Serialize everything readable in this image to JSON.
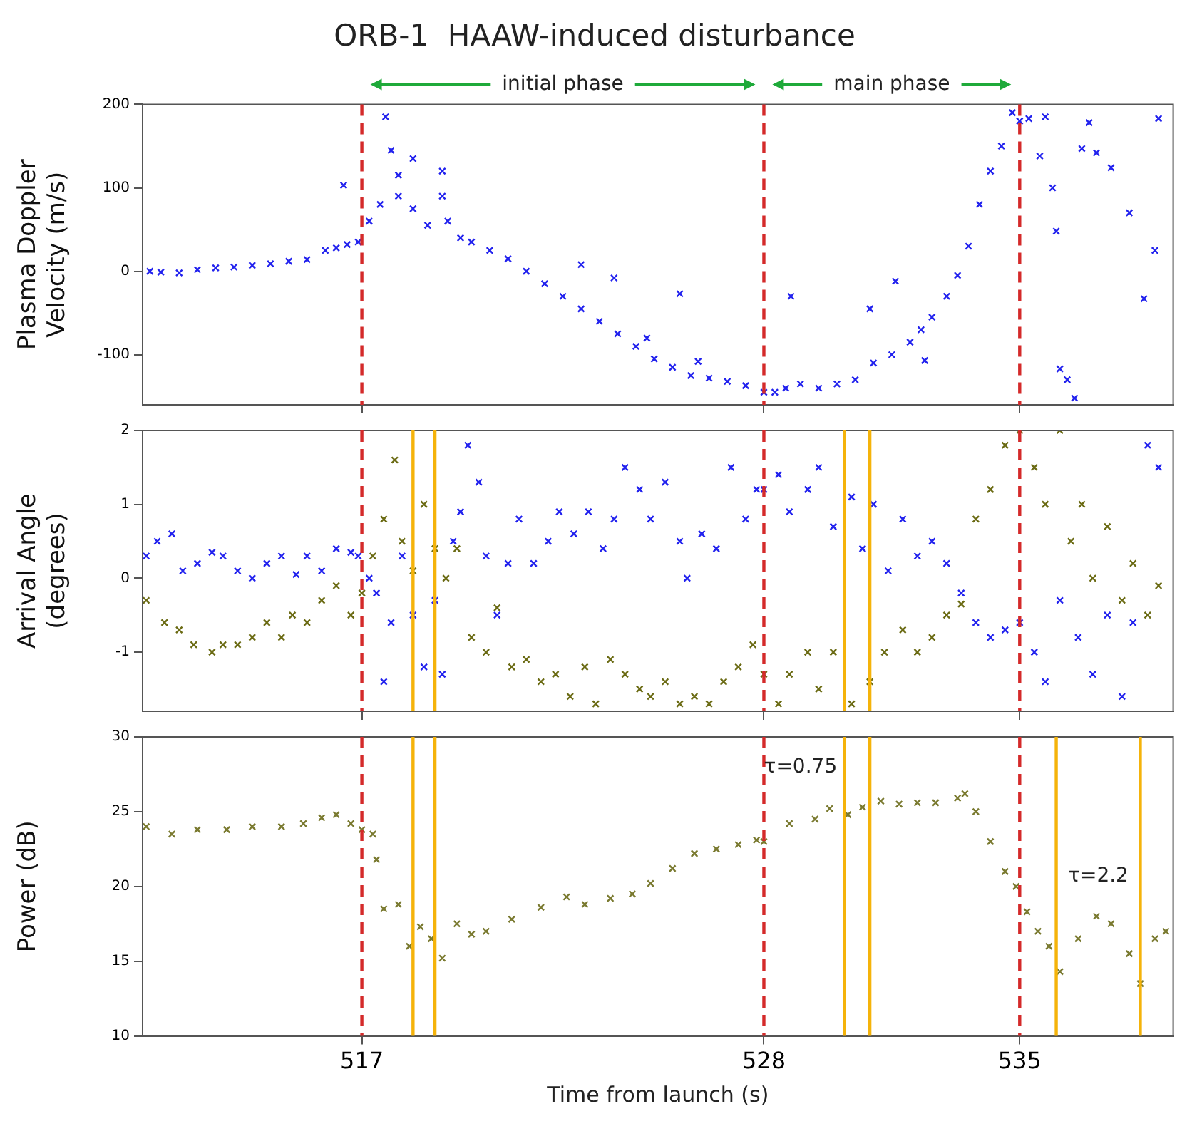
{
  "chart_data": [
    {
      "type": "scatter",
      "title": "ORB-1  HAAW-induced disturbance",
      "ylabel": "Plasma Doppler Velocity (m/s)",
      "xlim": [
        511,
        539.2
      ],
      "xticks": [
        {
          "value": 517,
          "label": null
        },
        {
          "value": 528,
          "label": null
        },
        {
          "value": 535,
          "label": null
        }
      ],
      "ylim": [
        -160,
        200
      ],
      "yticks": [
        -100,
        0,
        100,
        200
      ],
      "tick_labels": "y",
      "marker": "cross",
      "annotations": [
        "initial phase",
        "main phase"
      ],
      "ref_lines": [
        {
          "axis": "x",
          "value": 517,
          "color": "#d42a2a",
          "line_style": "dashed"
        },
        {
          "axis": "x",
          "value": 528,
          "color": "#d42a2a",
          "line_style": "dashed"
        },
        {
          "axis": "x",
          "value": 535,
          "color": "#d42a2a",
          "line_style": "dashed"
        }
      ],
      "series": [
        {
          "color": "#2222ee",
          "x": [
            511.2,
            511.5,
            512,
            512.5,
            513,
            513.5,
            514,
            514.5,
            515,
            515.5,
            516,
            516.3,
            516.5,
            516.6,
            516.9,
            517.2,
            517.5,
            517.65,
            517.8,
            518.0,
            518.0,
            518.4,
            518.4,
            518.8,
            519.2,
            519.2,
            519.35,
            519.7,
            520,
            520.5,
            521,
            521.5,
            522,
            522.5,
            523,
            523.0,
            523.5,
            523.9,
            524,
            524.5,
            524.8,
            525,
            525.5,
            525.7,
            526,
            526.2,
            526.5,
            527,
            527.5,
            528,
            528.3,
            528.6,
            528.74,
            529,
            529.5,
            530,
            530.5,
            530.9,
            531,
            531.5,
            531.6,
            532,
            532.3,
            532.4,
            532.6,
            533,
            533.3,
            533.6,
            533.9,
            534.2,
            534.5,
            534.8,
            535,
            535.25,
            535.55,
            535.7,
            535.9,
            536.0,
            536.1,
            536.3,
            536.5,
            536.7,
            536.9,
            537.1,
            537.5,
            538.0,
            538.4,
            538.7,
            538.8
          ],
          "values": [
            0,
            -1,
            -2,
            2,
            4,
            5,
            7,
            9,
            12,
            14,
            25,
            28,
            103,
            32,
            35,
            60,
            80,
            185,
            145,
            115,
            90,
            135,
            75,
            55,
            120,
            90,
            60,
            40,
            35,
            25,
            15,
            0,
            -15,
            -30,
            8,
            -45,
            -60,
            -8,
            -75,
            -90,
            -80,
            -105,
            -115,
            -27,
            -125,
            -108,
            -128,
            -132,
            -137,
            -145,
            -145,
            -140,
            -30,
            -135,
            -140,
            -135,
            -130,
            -45,
            -110,
            -100,
            -12,
            -85,
            -70,
            -107,
            -55,
            -30,
            -5,
            30,
            80,
            120,
            150,
            190,
            180,
            183,
            138,
            185,
            100,
            48,
            -117,
            -130,
            -152,
            147,
            178,
            142,
            124,
            70,
            -33,
            25,
            183
          ]
        }
      ]
    },
    {
      "type": "scatter",
      "ylabel": "Arrival Angle (degrees)",
      "xlim": [
        511,
        539.2
      ],
      "xticks": [
        {
          "value": 517,
          "label": null
        },
        {
          "value": 528,
          "label": null
        },
        {
          "value": 535,
          "label": null
        }
      ],
      "ylim": [
        -1.8,
        2
      ],
      "yticks": [
        -1,
        0,
        1,
        2
      ],
      "tick_labels": "y",
      "marker": "cross",
      "ref_lines": [
        {
          "axis": "x",
          "value": 517,
          "color": "#d42a2a",
          "line_style": "dashed"
        },
        {
          "axis": "x",
          "value": 528,
          "color": "#d42a2a",
          "line_style": "dashed"
        },
        {
          "axis": "x",
          "value": 535,
          "color": "#d42a2a",
          "line_style": "dashed"
        },
        {
          "axis": "x",
          "value": 518.4,
          "color": "#f5b30a",
          "line_style": "solid"
        },
        {
          "axis": "x",
          "value": 519.0,
          "color": "#f5b30a",
          "line_style": "solid"
        },
        {
          "axis": "x",
          "value": 530.2,
          "color": "#f5b30a",
          "line_style": "solid"
        },
        {
          "axis": "x",
          "value": 530.9,
          "color": "#f5b30a",
          "line_style": "solid"
        }
      ],
      "series": [
        {
          "color": "#2222ee",
          "x": [
            511.1,
            511.4,
            511.8,
            512.1,
            512.5,
            512.9,
            513.2,
            513.6,
            514.0,
            514.4,
            514.8,
            515.2,
            515.5,
            515.9,
            516.3,
            516.7,
            516.9,
            517.2,
            517.4,
            517.6,
            517.8,
            518.1,
            518.4,
            518.7,
            519.0,
            519.2,
            519.5,
            519.7,
            519.9,
            520.2,
            520.4,
            520.7,
            521.0,
            521.3,
            521.7,
            522.1,
            522.4,
            522.8,
            523.2,
            523.6,
            523.9,
            524.2,
            524.6,
            524.9,
            525.3,
            525.7,
            525.9,
            526.3,
            526.7,
            527.1,
            527.5,
            527.8,
            528.0,
            528.4,
            528.7,
            529.2,
            529.5,
            529.9,
            530.4,
            530.7,
            531.0,
            531.4,
            531.8,
            532.2,
            532.6,
            533.0,
            533.4,
            533.8,
            534.2,
            534.6,
            535.0,
            535.4,
            535.7,
            536.1,
            536.6,
            537.0,
            537.4,
            537.8,
            538.1,
            538.5,
            538.8
          ],
          "values": [
            0.3,
            0.5,
            0.6,
            0.1,
            0.2,
            0.35,
            0.3,
            0.1,
            0.0,
            0.2,
            0.3,
            0.05,
            0.3,
            0.1,
            0.4,
            0.35,
            0.3,
            0.0,
            -0.2,
            -1.4,
            -0.6,
            0.3,
            -0.5,
            -1.2,
            -0.3,
            -1.3,
            0.5,
            0.9,
            1.8,
            1.3,
            0.3,
            -0.5,
            0.2,
            0.8,
            0.2,
            0.5,
            0.9,
            0.6,
            0.9,
            0.4,
            0.8,
            1.5,
            1.2,
            0.8,
            1.3,
            0.5,
            0.0,
            0.6,
            0.4,
            1.5,
            0.8,
            1.2,
            1.2,
            1.4,
            0.9,
            1.2,
            1.5,
            0.7,
            1.1,
            0.4,
            1.0,
            0.1,
            0.8,
            0.3,
            0.5,
            0.2,
            -0.2,
            -0.6,
            -0.8,
            -0.7,
            -0.6,
            -1.0,
            -1.4,
            -0.3,
            -0.8,
            -1.3,
            -0.5,
            -1.6,
            -0.6,
            1.8,
            1.5
          ]
        },
        {
          "color": "#6b6b14",
          "x": [
            511.1,
            511.6,
            512.0,
            512.4,
            512.9,
            513.2,
            513.6,
            514.0,
            514.4,
            514.8,
            515.1,
            515.5,
            515.9,
            516.3,
            516.7,
            517.0,
            517.3,
            517.6,
            517.9,
            518.1,
            518.4,
            518.7,
            519.0,
            519.3,
            519.6,
            520.0,
            520.4,
            520.7,
            521.1,
            521.5,
            521.9,
            522.3,
            522.7,
            523.1,
            523.4,
            523.8,
            524.2,
            524.6,
            524.9,
            525.3,
            525.7,
            526.1,
            526.5,
            526.9,
            527.3,
            527.7,
            528.0,
            528.4,
            528.7,
            529.2,
            529.5,
            529.9,
            530.4,
            530.9,
            531.3,
            531.8,
            532.2,
            532.6,
            533.0,
            533.4,
            533.8,
            534.2,
            534.6,
            535.0,
            535.4,
            535.7,
            536.1,
            536.4,
            536.7,
            537.0,
            537.4,
            537.8,
            538.1,
            538.5,
            538.8
          ],
          "values": [
            -0.3,
            -0.6,
            -0.7,
            -0.9,
            -1.0,
            -0.9,
            -0.9,
            -0.8,
            -0.6,
            -0.8,
            -0.5,
            -0.6,
            -0.3,
            -0.1,
            -0.5,
            -0.2,
            0.3,
            0.8,
            1.6,
            0.5,
            0.1,
            1.0,
            0.4,
            0.0,
            0.4,
            -0.8,
            -1.0,
            -0.4,
            -1.2,
            -1.1,
            -1.4,
            -1.3,
            -1.6,
            -1.2,
            -1.7,
            -1.1,
            -1.3,
            -1.5,
            -1.6,
            -1.4,
            -1.7,
            -1.6,
            -1.7,
            -1.4,
            -1.2,
            -0.9,
            -1.3,
            -1.7,
            -1.3,
            -1.0,
            -1.5,
            -1.0,
            -1.7,
            -1.4,
            -1.0,
            -0.7,
            -1.0,
            -0.8,
            -0.5,
            -0.35,
            0.8,
            1.2,
            1.8,
            2.0,
            1.5,
            1.0,
            2.0,
            0.5,
            1.0,
            0.0,
            0.7,
            -0.3,
            0.2,
            -0.5,
            -0.1
          ]
        }
      ]
    },
    {
      "type": "scatter",
      "ylabel": "Power (dB)",
      "xlabel": "Time from launch (s)",
      "xlim": [
        511,
        539.2
      ],
      "xticks": [
        517,
        528,
        535
      ],
      "ylim": [
        10,
        30
      ],
      "yticks": [
        10,
        15,
        20,
        25,
        30
      ],
      "marker": "cross",
      "annotations": [
        "τ=0.75",
        "τ=2.2"
      ],
      "ref_lines": [
        {
          "axis": "x",
          "value": 517,
          "color": "#d42a2a",
          "line_style": "dashed"
        },
        {
          "axis": "x",
          "value": 528,
          "color": "#d42a2a",
          "line_style": "dashed"
        },
        {
          "axis": "x",
          "value": 535,
          "color": "#d42a2a",
          "line_style": "dashed"
        },
        {
          "axis": "x",
          "value": 518.4,
          "color": "#f5b30a",
          "line_style": "solid"
        },
        {
          "axis": "x",
          "value": 519.0,
          "color": "#f5b30a",
          "line_style": "solid"
        },
        {
          "axis": "x",
          "value": 530.2,
          "color": "#f5b30a",
          "line_style": "solid"
        },
        {
          "axis": "x",
          "value": 530.9,
          "color": "#f5b30a",
          "line_style": "solid"
        },
        {
          "axis": "x",
          "value": 536.0,
          "color": "#f5b30a",
          "line_style": "solid"
        },
        {
          "axis": "x",
          "value": 538.3,
          "color": "#f5b30a",
          "line_style": "solid"
        }
      ],
      "series": [
        {
          "color": "#7a7a30",
          "x": [
            511.1,
            511.8,
            512.5,
            513.3,
            514.0,
            514.8,
            515.4,
            515.9,
            516.3,
            516.7,
            517.0,
            517.3,
            517.4,
            517.6,
            518.0,
            518.3,
            518.6,
            518.9,
            519.2,
            519.6,
            520.0,
            520.4,
            521.1,
            521.9,
            522.6,
            523.1,
            523.8,
            524.4,
            524.9,
            525.5,
            526.1,
            526.7,
            527.3,
            527.8,
            528.0,
            528.7,
            529.4,
            529.8,
            530.3,
            530.7,
            531.2,
            531.7,
            532.2,
            532.7,
            533.3,
            533.5,
            533.8,
            534.2,
            534.6,
            534.9,
            535.2,
            535.5,
            535.8,
            536.1,
            536.6,
            537.1,
            537.5,
            538.0,
            538.3,
            538.7,
            539.0
          ],
          "values": [
            24.0,
            23.5,
            23.8,
            23.8,
            24.0,
            24.0,
            24.2,
            24.6,
            24.8,
            24.2,
            23.8,
            23.5,
            21.8,
            18.5,
            18.8,
            16.0,
            17.3,
            16.5,
            15.2,
            17.5,
            16.8,
            17.0,
            17.8,
            18.6,
            19.3,
            18.8,
            19.2,
            19.5,
            20.2,
            21.2,
            22.2,
            22.5,
            22.8,
            23.1,
            23.0,
            24.2,
            24.5,
            25.2,
            24.8,
            25.3,
            25.7,
            25.5,
            25.6,
            25.6,
            25.9,
            26.2,
            25.0,
            23.0,
            21.0,
            20.0,
            18.3,
            17.0,
            16.0,
            14.3,
            16.5,
            18.0,
            17.5,
            15.5,
            13.5,
            16.5,
            17.0
          ]
        }
      ]
    }
  ]
}
